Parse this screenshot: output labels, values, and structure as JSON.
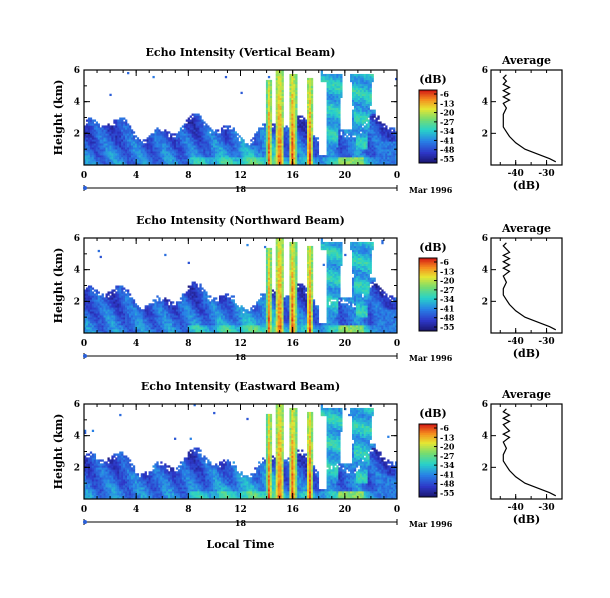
{
  "figure": {
    "xlabel": "Local Time",
    "date_label": "Mar 1996",
    "day_label": "18",
    "ylabel": "Height (km)",
    "avg_title": "Average",
    "avg_xlabel": "(dB)",
    "colorbar_unit": "(dB)"
  },
  "chart_data": [
    {
      "type": "heatmap",
      "title": "Echo Intensity (Vertical Beam)",
      "xlabel": "",
      "ylabel": "Height (km)",
      "xlim": [
        0,
        24
      ],
      "ylim": [
        0,
        6
      ],
      "xticks": [
        "0",
        "4",
        "8",
        "12",
        "16",
        "20",
        "0"
      ],
      "yticks": [
        "2",
        "4",
        "6"
      ],
      "colorbar": {
        "label": "(dB)",
        "ticks": [
          "-6",
          "-13",
          "-20",
          "-27",
          "-34",
          "-41",
          "-48",
          "-55"
        ],
        "range": [
          -55,
          -6
        ]
      },
      "colors": {
        "low": "#2a1ea8",
        "mid": "#28d2b4",
        "high": "#d81818"
      }
    },
    {
      "type": "line",
      "title": "Average",
      "xlabel": "(dB)",
      "ylabel": "",
      "xlim": [
        -48,
        -25
      ],
      "ylim": [
        0,
        6
      ],
      "xticks": [
        "-40",
        "-30"
      ],
      "yticks": [
        "2",
        "4",
        "6"
      ],
      "series": [
        {
          "x": [
            -27,
            -29,
            -33,
            -37,
            -40,
            -42,
            -43,
            -44,
            -44,
            -44,
            -43,
            -44,
            -42,
            -44,
            -42,
            -44,
            -42,
            -44,
            -43,
            -44,
            -43
          ],
          "y": [
            0.2,
            0.4,
            0.7,
            1.0,
            1.4,
            1.8,
            2.1,
            2.4,
            2.8,
            3.2,
            3.6,
            3.9,
            4.1,
            4.3,
            4.5,
            4.7,
            4.9,
            5.1,
            5.3,
            5.5,
            5.7
          ]
        }
      ]
    },
    {
      "type": "heatmap",
      "title": "Echo Intensity (Northward Beam)",
      "xlabel": "",
      "ylabel": "Height (km)",
      "xlim": [
        0,
        24
      ],
      "ylim": [
        0,
        6
      ],
      "xticks": [
        "0",
        "4",
        "8",
        "12",
        "16",
        "20",
        "0"
      ],
      "yticks": [
        "2",
        "4",
        "6"
      ],
      "colorbar": {
        "label": "(dB)",
        "ticks": [
          "-6",
          "-13",
          "-20",
          "-27",
          "-34",
          "-41",
          "-48",
          "-55"
        ],
        "range": [
          -55,
          -6
        ]
      },
      "colors": {
        "low": "#2a1ea8",
        "mid": "#28d2b4",
        "high": "#d81818"
      }
    },
    {
      "type": "line",
      "title": "Average",
      "xlabel": "(dB)",
      "ylabel": "",
      "xlim": [
        -48,
        -25
      ],
      "ylim": [
        0,
        6
      ],
      "xticks": [
        "-40",
        "-30"
      ],
      "yticks": [
        "2",
        "4",
        "6"
      ],
      "series": [
        {
          "x": [
            -27,
            -29,
            -33,
            -37,
            -40,
            -42,
            -43,
            -44,
            -44,
            -43,
            -44,
            -42,
            -44,
            -42,
            -44,
            -42,
            -44,
            -42,
            -43,
            -44,
            -43
          ],
          "y": [
            0.2,
            0.4,
            0.7,
            1.0,
            1.4,
            1.8,
            2.1,
            2.4,
            2.8,
            3.2,
            3.6,
            3.9,
            4.1,
            4.3,
            4.5,
            4.7,
            4.9,
            5.1,
            5.3,
            5.5,
            5.7
          ]
        }
      ]
    },
    {
      "type": "heatmap",
      "title": "Echo Intensity (Eastward Beam)",
      "xlabel": "Local Time",
      "ylabel": "Height (km)",
      "xlim": [
        0,
        24
      ],
      "ylim": [
        0,
        6
      ],
      "xticks": [
        "0",
        "4",
        "8",
        "12",
        "16",
        "20",
        "0"
      ],
      "yticks": [
        "2",
        "4",
        "6"
      ],
      "colorbar": {
        "label": "(dB)",
        "ticks": [
          "-6",
          "-13",
          "-20",
          "-27",
          "-34",
          "-41",
          "-48",
          "-55"
        ],
        "range": [
          -55,
          -6
        ]
      },
      "colors": {
        "low": "#2a1ea8",
        "mid": "#28d2b4",
        "high": "#d81818"
      }
    },
    {
      "type": "line",
      "title": "Average",
      "xlabel": "(dB)",
      "ylabel": "",
      "xlim": [
        -48,
        -25
      ],
      "ylim": [
        0,
        6
      ],
      "xticks": [
        "-40",
        "-30"
      ],
      "yticks": [
        "2",
        "4",
        "6"
      ],
      "series": [
        {
          "x": [
            -27,
            -29,
            -33,
            -37,
            -40,
            -42,
            -43,
            -44,
            -44,
            -43,
            -44,
            -42,
            -44,
            -42,
            -43,
            -44,
            -42,
            -44,
            -42,
            -44,
            -43
          ],
          "y": [
            0.2,
            0.4,
            0.7,
            1.0,
            1.4,
            1.8,
            2.1,
            2.4,
            2.8,
            3.2,
            3.6,
            3.9,
            4.1,
            4.3,
            4.5,
            4.7,
            4.9,
            5.1,
            5.3,
            5.5,
            5.7
          ]
        }
      ]
    }
  ]
}
